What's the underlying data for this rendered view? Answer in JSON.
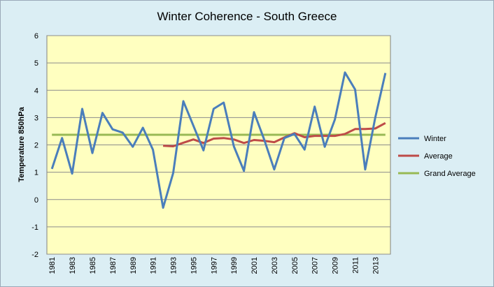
{
  "chart_data": {
    "type": "line",
    "title": "Winter Coherence - South Greece",
    "xlabel": "",
    "ylabel": "Temperature 850hPa",
    "ylim": [
      -2,
      6
    ],
    "yticks": [
      "6",
      "5",
      "4",
      "3",
      "2",
      "1",
      "0",
      "-1",
      "-2"
    ],
    "x": [
      1981,
      1982,
      1983,
      1984,
      1985,
      1986,
      1987,
      1988,
      1989,
      1990,
      1991,
      1992,
      1993,
      1994,
      1995,
      1996,
      1997,
      1998,
      1999,
      2000,
      2001,
      2002,
      2003,
      2004,
      2005,
      2006,
      2007,
      2008,
      2009,
      2010,
      2011,
      2012,
      2013,
      2014
    ],
    "xtick_labels": [
      "1981",
      "1983",
      "1985",
      "1987",
      "1989",
      "1991",
      "1993",
      "1995",
      "1997",
      "1999",
      "2001",
      "2003",
      "2005",
      "2007",
      "2009",
      "2011",
      "2013"
    ],
    "grid": "horizontal",
    "legend_position": "right",
    "series": [
      {
        "name": "Winter",
        "color": "#4a7ebb",
        "values": [
          1.12,
          2.25,
          0.95,
          3.32,
          1.7,
          3.17,
          2.57,
          2.45,
          1.93,
          2.63,
          1.82,
          -0.3,
          0.97,
          3.6,
          2.7,
          1.8,
          3.32,
          3.55,
          1.95,
          1.05,
          3.2,
          2.2,
          1.1,
          2.25,
          2.4,
          1.83,
          3.4,
          1.93,
          2.93,
          4.65,
          4.03,
          1.1,
          3.0,
          4.63
        ]
      },
      {
        "name": "Average",
        "color": "#be4b48",
        "values": [
          null,
          null,
          null,
          null,
          null,
          null,
          null,
          null,
          null,
          null,
          null,
          1.97,
          1.95,
          2.08,
          2.2,
          2.07,
          2.23,
          2.25,
          2.2,
          2.07,
          2.18,
          2.15,
          2.1,
          2.27,
          2.43,
          2.28,
          2.33,
          2.33,
          2.33,
          2.4,
          2.58,
          2.58,
          2.6,
          2.8
        ]
      },
      {
        "name": "Grand Average",
        "color": "#98b954",
        "values": [
          2.37,
          2.37,
          2.37,
          2.37,
          2.37,
          2.37,
          2.37,
          2.37,
          2.37,
          2.37,
          2.37,
          2.37,
          2.37,
          2.37,
          2.37,
          2.37,
          2.37,
          2.37,
          2.37,
          2.37,
          2.37,
          2.37,
          2.37,
          2.37,
          2.37,
          2.37,
          2.37,
          2.37,
          2.37,
          2.37,
          2.37,
          2.37,
          2.37,
          2.37
        ]
      }
    ],
    "plot_background": "#ffffc0",
    "chart_background": "#dbeef4"
  }
}
